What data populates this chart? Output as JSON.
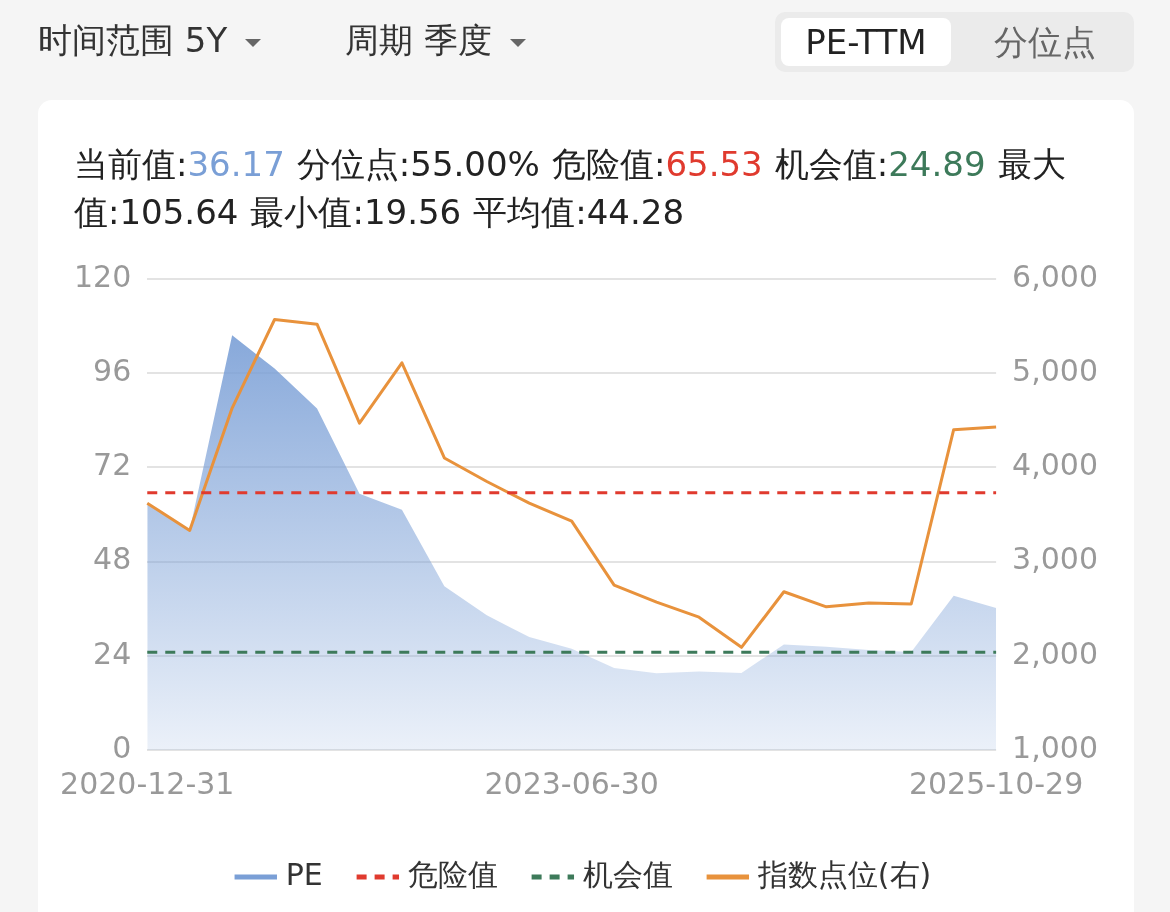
{
  "chart_data": {
    "type": "area",
    "annotations": [
      "时间范围",
      "5Y",
      "周期",
      "季度",
      "PE-TTM",
      "分位点",
      "当前值:36.17",
      "分位点:55.00%",
      "危险值:65.53",
      "机会值:24.89",
      "最大值:105.64",
      "最小值:19.56",
      "平均值:44.28"
    ],
    "categories": [
      "2020-12-31",
      null,
      null,
      null,
      null,
      null,
      null,
      null,
      null,
      null,
      "2023-06-30",
      null,
      null,
      null,
      null,
      null,
      null,
      null,
      null,
      null,
      "2025-10-29"
    ],
    "series": [
      {
        "name": "PE",
        "color": "#7a9fd6",
        "values": [
          63,
          56,
          105.64,
          97.2,
          87,
          65.3,
          61.2,
          41.7,
          34.3,
          28.8,
          25.8,
          20.9,
          19.56,
          20,
          19.6,
          26.9,
          26.3,
          25.5,
          25,
          39.3,
          36.17
        ]
      },
      {
        "name": "危险值",
        "type": "line",
        "color": "#e03a2e",
        "line_style": "dashed",
        "values": [
          65.53,
          65.53,
          65.53,
          65.53,
          65.53,
          65.53,
          65.53,
          65.53,
          65.53,
          65.53,
          65.53,
          65.53,
          65.53,
          65.53,
          65.53,
          65.53,
          65.53,
          65.53,
          65.53,
          65.53,
          65.53
        ]
      },
      {
        "name": "机会值",
        "type": "line",
        "color": "#3d7a5a",
        "line_style": "dashed",
        "values": [
          24.89,
          24.89,
          24.89,
          24.89,
          24.89,
          24.89,
          24.89,
          24.89,
          24.89,
          24.89,
          24.89,
          24.89,
          24.89,
          24.89,
          24.89,
          24.89,
          24.89,
          24.89,
          24.89,
          24.89,
          24.89
        ]
      },
      {
        "name": "指数点位(右)",
        "type": "line",
        "color": "#e8923c",
        "axis": "y2",
        "values": [
          3620,
          3330,
          4630,
          5570,
          5520,
          4470,
          5110,
          4100,
          3850,
          3620,
          3430,
          2750,
          2570,
          2410,
          2090,
          2680,
          2520,
          2560,
          2550,
          4400,
          4430
        ]
      }
    ],
    "ylim": [
      0,
      120
    ],
    "yticks": [
      0,
      24,
      48,
      72,
      96,
      120
    ],
    "y2lim": [
      1000,
      6000
    ],
    "y2ticks": [
      {
        "value": 1000,
        "label": "1,000"
      },
      {
        "value": 2000,
        "label": "2,000"
      },
      {
        "value": 3000,
        "label": "3,000"
      },
      {
        "value": 4000,
        "label": "4,000"
      },
      {
        "value": 5000,
        "label": "5,000"
      },
      {
        "value": 6000,
        "label": "6,000"
      }
    ],
    "grid": "y",
    "legend": "bottom",
    "marker": "none"
  }
}
